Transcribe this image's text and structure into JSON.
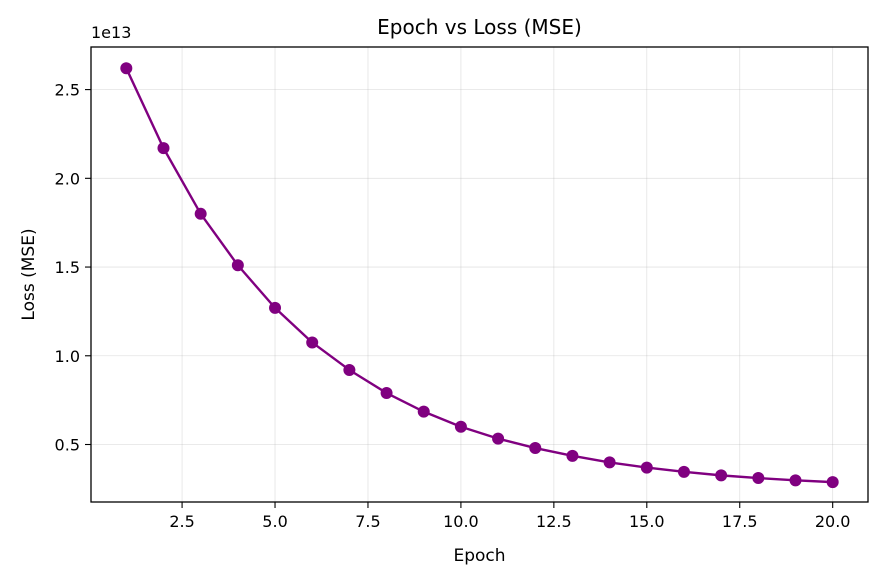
{
  "chart_data": {
    "type": "line",
    "title": "Epoch vs Loss (MSE)",
    "xlabel": "Epoch",
    "ylabel": "Loss (MSE)",
    "y_offset_label": "1e13",
    "xlim": [
      0.05,
      20.95
    ],
    "ylim": [
      1.76,
      27.4
    ],
    "x_ticks": [
      2.5,
      5.0,
      7.5,
      10.0,
      12.5,
      15.0,
      17.5,
      20.0
    ],
    "x_tick_labels": [
      "2.5",
      "5.0",
      "7.5",
      "10.0",
      "12.5",
      "15.0",
      "17.5",
      "20.0"
    ],
    "y_ticks": [
      5,
      10,
      15,
      20,
      25
    ],
    "y_tick_labels": [
      "0.5",
      "1.0",
      "1.5",
      "2.0",
      "2.5"
    ],
    "grid": true,
    "series": [
      {
        "color": "#800080",
        "marker": "circle",
        "x": [
          1,
          2,
          3,
          4,
          5,
          6,
          7,
          8,
          9,
          10,
          11,
          12,
          13,
          14,
          15,
          16,
          17,
          18,
          19,
          20
        ],
        "y": [
          26.2,
          21.7,
          18.0,
          15.1,
          12.7,
          10.75,
          9.2,
          7.9,
          6.85,
          6.0,
          5.33,
          4.8,
          4.36,
          3.99,
          3.7,
          3.46,
          3.26,
          3.11,
          2.98,
          2.88
        ]
      }
    ]
  }
}
